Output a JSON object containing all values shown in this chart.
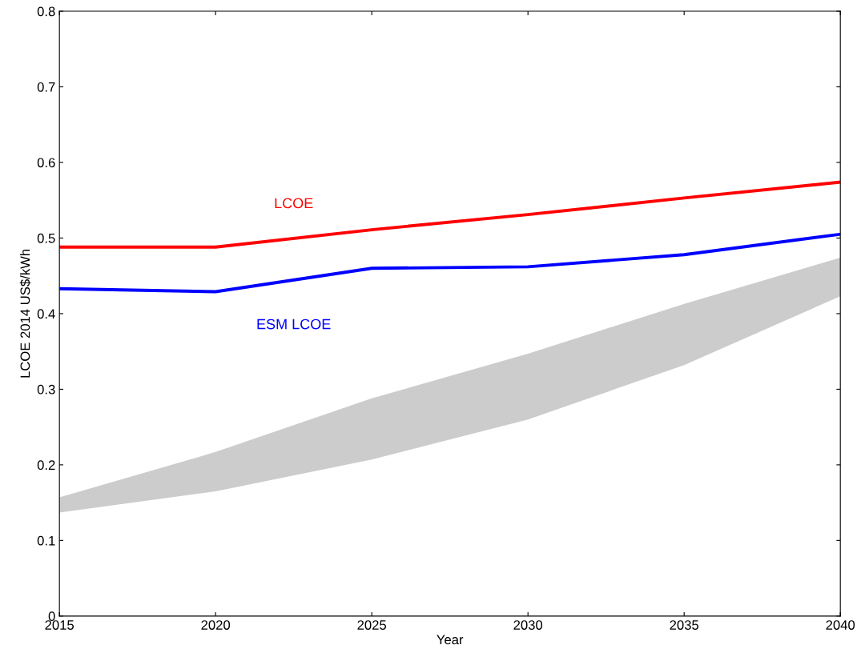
{
  "chart_data": {
    "type": "line",
    "xlabel": "Year",
    "ylabel": "LCOE 2014 US$/kWh",
    "x": [
      2015,
      2020,
      2025,
      2030,
      2035,
      2040
    ],
    "series": [
      {
        "color": "#cccccc",
        "values": [
          null,
          null,
          null,
          null,
          null,
          null
        ],
        "lower": [
          0.137,
          0.165,
          0.207,
          0.26,
          0.332,
          0.423
        ],
        "upper": [
          0.157,
          0.217,
          0.288,
          0.347,
          0.413,
          0.474
        ]
      },
      {
        "name": "LCOE",
        "color": "#ff0000",
        "values": [
          0.488,
          0.488,
          0.511,
          0.531,
          0.553,
          0.574
        ]
      },
      {
        "name": "ESM LCOE",
        "color": "#0000ff",
        "values": [
          0.433,
          0.429,
          0.46,
          0.462,
          0.478,
          0.505
        ]
      }
    ],
    "xlim": [
      2015,
      2040
    ],
    "xticks": [
      2015,
      2020,
      2025,
      2030,
      2035,
      2040
    ],
    "ylim": [
      0,
      0.8
    ],
    "yticks": [
      0,
      0.1,
      0.2,
      0.3,
      0.4,
      0.5,
      0.6,
      0.7,
      0.8
    ],
    "grid": false,
    "legend": false,
    "marker": "none",
    "line_style": "solid"
  }
}
